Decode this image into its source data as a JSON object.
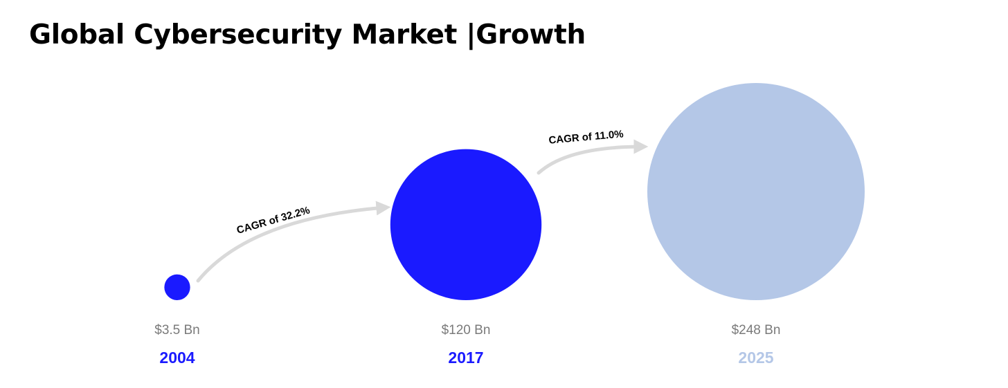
{
  "title": "Global Cybersecurity Market |Growth",
  "chart_data": {
    "type": "bubble",
    "unit": "Bn USD",
    "points": [
      {
        "year": "2004",
        "value": 3.5,
        "value_label": "$3.5 Bn",
        "color": "#1a1aff"
      },
      {
        "year": "2017",
        "value": 120,
        "value_label": "$120 Bn",
        "color": "#1a1aff"
      },
      {
        "year": "2025",
        "value": 248,
        "value_label": "$248 Bn",
        "color": "#b4c7e7"
      }
    ],
    "growth_arrows": [
      {
        "from": "2004",
        "to": "2017",
        "label": "CAGR of 32.2%",
        "cagr_percent": 32.2
      },
      {
        "from": "2017",
        "to": "2025",
        "label": "CAGR of 11.0%",
        "cagr_percent": 11.0
      }
    ],
    "arrow_color": "#d9d9d9",
    "value_label_color": "#7a7a7a"
  }
}
